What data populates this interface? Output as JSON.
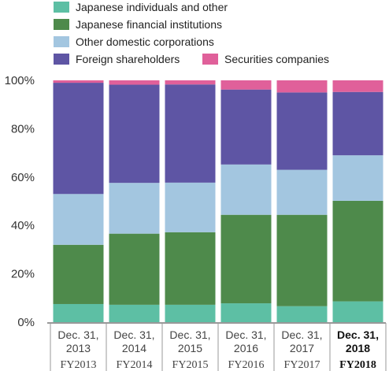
{
  "chart_data": {
    "type": "bar",
    "stacked": true,
    "categories": [
      [
        "Dec. 31,",
        "2013"
      ],
      [
        "Dec. 31,",
        "2014"
      ],
      [
        "Dec. 31,",
        "2015"
      ],
      [
        "Dec. 31,",
        "2016"
      ],
      [
        "Dec. 31,",
        "2017"
      ],
      [
        "Dec. 31,",
        "2018"
      ]
    ],
    "fiscal_years": [
      "FY2013",
      "FY2014",
      "FY2015",
      "FY2016",
      "FY2017",
      "FY2018"
    ],
    "highlight_category_index": 5,
    "series": [
      {
        "name": "Japanese individuals and other",
        "color": "#5dbfa4",
        "values": [
          7.5,
          7.2,
          7.2,
          7.8,
          6.6,
          8.6
        ]
      },
      {
        "name": "Japanese financial institutions",
        "color": "#4e8a4b",
        "values": [
          24.5,
          29.4,
          30.0,
          36.6,
          37.8,
          41.6
        ]
      },
      {
        "name": "Other domestic corporations",
        "color": "#a3c6e0",
        "values": [
          21.0,
          21.0,
          20.5,
          20.8,
          18.6,
          18.8
        ]
      },
      {
        "name": "Foreign shareholders",
        "color": "#5e55a4",
        "values": [
          46.0,
          40.6,
          40.6,
          31.0,
          32.0,
          26.2
        ]
      },
      {
        "name": "Securities companies",
        "color": "#e0609a",
        "values": [
          1.0,
          1.8,
          1.7,
          3.8,
          5.0,
          4.8
        ]
      }
    ],
    "ylim": [
      0,
      100
    ],
    "yticks": [
      "0%",
      "20%",
      "40%",
      "60%",
      "80%",
      "100%"
    ],
    "grid": false,
    "legend_position": "top"
  }
}
